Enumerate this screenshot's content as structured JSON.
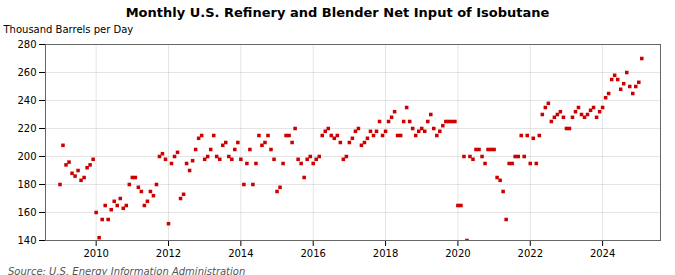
{
  "chart_data": {
    "type": "scatter",
    "title": "Monthly U.S. Refinery and Blender Net Input of Isobutane",
    "ylabel": "Thousand Barrels per Day",
    "source": "Source: U.S. Energy Information Administration",
    "color": "#cc0000",
    "marker": "square",
    "grid": true,
    "xlim": [
      2008.6,
      2025.6
    ],
    "xticks": [
      2010,
      2012,
      2014,
      2016,
      2018,
      2020,
      2022,
      2024
    ],
    "ylim": [
      140,
      280
    ],
    "yticks": [
      140,
      160,
      180,
      200,
      220,
      240,
      260,
      280
    ],
    "x": [
      2009.0,
      2009.083,
      2009.167,
      2009.25,
      2009.333,
      2009.417,
      2009.5,
      2009.583,
      2009.667,
      2009.75,
      2009.833,
      2009.917,
      2010.0,
      2010.083,
      2010.167,
      2010.25,
      2010.333,
      2010.417,
      2010.5,
      2010.583,
      2010.667,
      2010.75,
      2010.833,
      2010.917,
      2011.0,
      2011.083,
      2011.167,
      2011.25,
      2011.333,
      2011.417,
      2011.5,
      2011.583,
      2011.667,
      2011.75,
      2011.833,
      2011.917,
      2012.0,
      2012.083,
      2012.167,
      2012.25,
      2012.333,
      2012.417,
      2012.5,
      2012.583,
      2012.667,
      2012.75,
      2012.833,
      2012.917,
      2013.0,
      2013.083,
      2013.167,
      2013.25,
      2013.333,
      2013.417,
      2013.5,
      2013.583,
      2013.667,
      2013.75,
      2013.833,
      2013.917,
      2014.0,
      2014.083,
      2014.167,
      2014.25,
      2014.333,
      2014.417,
      2014.5,
      2014.583,
      2014.667,
      2014.75,
      2014.833,
      2014.917,
      2015.0,
      2015.083,
      2015.167,
      2015.25,
      2015.333,
      2015.417,
      2015.5,
      2015.583,
      2015.667,
      2015.75,
      2015.833,
      2015.917,
      2016.0,
      2016.083,
      2016.167,
      2016.25,
      2016.333,
      2016.417,
      2016.5,
      2016.583,
      2016.667,
      2016.75,
      2016.833,
      2016.917,
      2017.0,
      2017.083,
      2017.167,
      2017.25,
      2017.333,
      2017.417,
      2017.5,
      2017.583,
      2017.667,
      2017.75,
      2017.833,
      2017.917,
      2018.0,
      2018.083,
      2018.167,
      2018.25,
      2018.333,
      2018.417,
      2018.5,
      2018.583,
      2018.667,
      2018.75,
      2018.833,
      2018.917,
      2019.0,
      2019.083,
      2019.167,
      2019.25,
      2019.333,
      2019.417,
      2019.5,
      2019.583,
      2019.667,
      2019.75,
      2019.833,
      2019.917,
      2020.0,
      2020.083,
      2020.167,
      2020.25,
      2020.333,
      2020.417,
      2020.5,
      2020.583,
      2020.667,
      2020.75,
      2020.833,
      2020.917,
      2021.0,
      2021.083,
      2021.167,
      2021.25,
      2021.333,
      2021.417,
      2021.5,
      2021.583,
      2021.667,
      2021.75,
      2021.833,
      2021.917,
      2022.0,
      2022.083,
      2022.167,
      2022.25,
      2022.333,
      2022.417,
      2022.5,
      2022.583,
      2022.667,
      2022.75,
      2022.833,
      2022.917,
      2023.0,
      2023.083,
      2023.167,
      2023.25,
      2023.333,
      2023.417,
      2023.5,
      2023.583,
      2023.667,
      2023.75,
      2023.833,
      2023.917,
      2024.0,
      2024.083,
      2024.167,
      2024.25,
      2024.333,
      2024.417,
      2024.5,
      2024.583,
      2024.667,
      2024.75,
      2024.833,
      2024.917,
      2025.0,
      2025.083
    ],
    "values": [
      180,
      208,
      194,
      196,
      188,
      186,
      190,
      183,
      185,
      192,
      194,
      198,
      160,
      142,
      155,
      165,
      155,
      162,
      168,
      165,
      170,
      163,
      165,
      180,
      185,
      185,
      178,
      175,
      165,
      168,
      175,
      172,
      180,
      200,
      202,
      198,
      152,
      195,
      200,
      203,
      170,
      173,
      195,
      190,
      197,
      205,
      213,
      215,
      198,
      200,
      205,
      215,
      200,
      198,
      208,
      210,
      200,
      198,
      205,
      210,
      198,
      180,
      195,
      205,
      180,
      195,
      215,
      208,
      210,
      215,
      205,
      198,
      175,
      178,
      195,
      215,
      215,
      210,
      220,
      198,
      195,
      185,
      198,
      200,
      195,
      198,
      200,
      215,
      218,
      220,
      215,
      213,
      215,
      210,
      198,
      200,
      210,
      213,
      218,
      220,
      208,
      210,
      213,
      218,
      215,
      218,
      225,
      215,
      218,
      225,
      228,
      232,
      215,
      215,
      225,
      235,
      225,
      220,
      215,
      218,
      220,
      218,
      225,
      230,
      220,
      215,
      218,
      222,
      225,
      225,
      225,
      225,
      165,
      165,
      200,
      140,
      200,
      198,
      205,
      205,
      200,
      195,
      205,
      205,
      205,
      185,
      183,
      175,
      155,
      195,
      195,
      200,
      200,
      215,
      200,
      215,
      195,
      213,
      195,
      215,
      230,
      235,
      238,
      225,
      228,
      230,
      232,
      228,
      220,
      220,
      228,
      232,
      235,
      230,
      228,
      230,
      233,
      235,
      228,
      232,
      235,
      242,
      245,
      255,
      258,
      255,
      248,
      252,
      260,
      250,
      245,
      250,
      253,
      270
    ]
  }
}
